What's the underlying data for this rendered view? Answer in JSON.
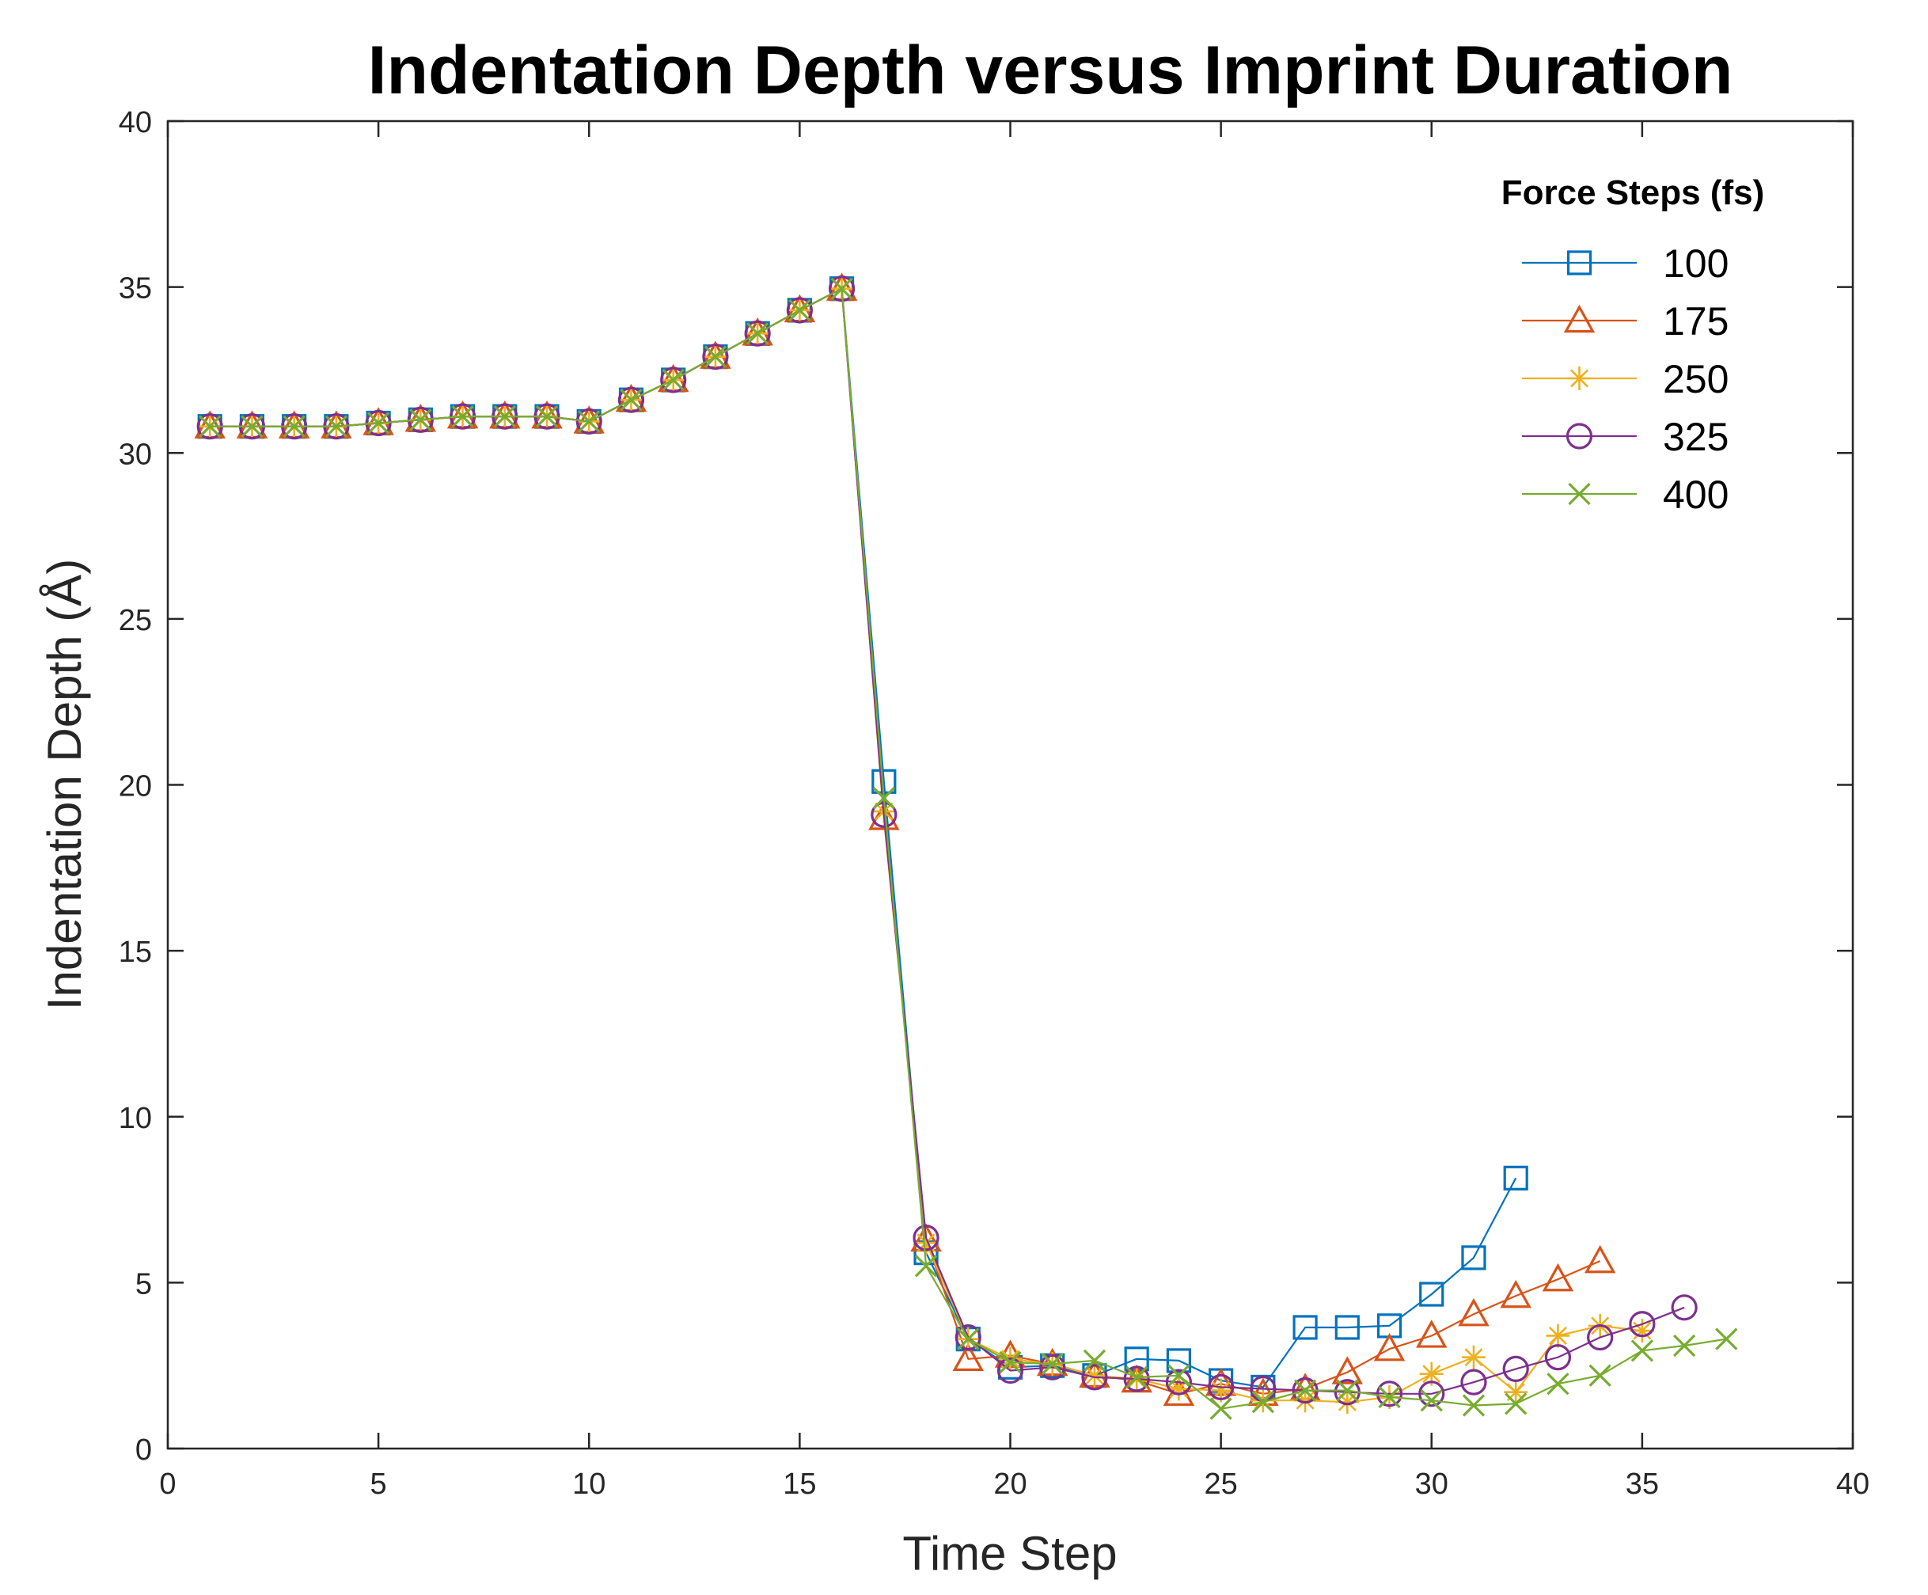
{
  "chart_data": {
    "type": "line",
    "title": "Indentation Depth versus Imprint Duration",
    "xlabel": "Time Step",
    "ylabel": "Indentation Depth (Å)",
    "xlim": [
      0,
      40
    ],
    "ylim": [
      0,
      40
    ],
    "xticks": [
      0,
      5,
      10,
      15,
      20,
      25,
      30,
      35,
      40
    ],
    "yticks": [
      0,
      5,
      10,
      15,
      20,
      25,
      30,
      35,
      40
    ],
    "grid": false,
    "legend_title": "Force Steps (fs)",
    "legend_position": "top-right",
    "series": [
      {
        "name": "100",
        "color": "#0072BD",
        "marker": "square",
        "x": [
          1,
          2,
          3,
          4,
          5,
          6,
          7,
          8,
          9,
          10,
          11,
          12,
          13,
          14,
          15,
          16,
          17,
          18,
          19,
          20,
          21,
          22,
          23,
          24,
          25,
          26,
          27,
          28,
          29,
          30,
          31,
          32
        ],
        "y": [
          30.8,
          30.8,
          30.8,
          30.8,
          30.9,
          31.0,
          31.1,
          31.1,
          31.1,
          30.95,
          31.6,
          32.2,
          32.9,
          33.6,
          34.3,
          34.95,
          20.1,
          5.9,
          3.3,
          2.45,
          2.5,
          2.2,
          2.7,
          2.65,
          2.05,
          1.85,
          3.65,
          3.65,
          3.7,
          4.65,
          5.75,
          8.15
        ]
      },
      {
        "name": "175",
        "color": "#D95319",
        "marker": "triangle",
        "x": [
          1,
          2,
          3,
          4,
          5,
          6,
          7,
          8,
          9,
          10,
          11,
          12,
          13,
          14,
          15,
          16,
          17,
          18,
          19,
          20,
          21,
          22,
          23,
          24,
          25,
          26,
          27,
          28,
          29,
          30,
          31,
          32,
          33,
          34
        ],
        "y": [
          30.8,
          30.8,
          30.8,
          30.8,
          30.9,
          31.0,
          31.1,
          31.1,
          31.1,
          30.95,
          31.6,
          32.2,
          32.9,
          33.6,
          34.3,
          34.95,
          19.0,
          6.3,
          2.7,
          2.8,
          2.55,
          2.2,
          2.05,
          1.65,
          1.95,
          1.65,
          1.8,
          2.3,
          3.0,
          3.4,
          4.05,
          4.6,
          5.1,
          5.65
        ]
      },
      {
        "name": "250",
        "color": "#EDB120",
        "marker": "asterisk",
        "x": [
          1,
          2,
          3,
          4,
          5,
          6,
          7,
          8,
          9,
          10,
          11,
          12,
          13,
          14,
          15,
          16,
          17,
          18,
          19,
          20,
          21,
          22,
          23,
          24,
          25,
          26,
          27,
          28,
          29,
          30,
          31,
          32,
          33,
          34,
          35
        ],
        "y": [
          30.8,
          30.8,
          30.8,
          30.8,
          30.9,
          31.0,
          31.1,
          31.1,
          31.1,
          30.95,
          31.6,
          32.2,
          32.9,
          33.6,
          34.3,
          34.95,
          19.2,
          6.2,
          3.3,
          2.7,
          2.55,
          2.2,
          2.1,
          1.8,
          1.75,
          1.45,
          1.45,
          1.4,
          1.55,
          2.25,
          2.75,
          1.7,
          3.4,
          3.7,
          3.55
        ]
      },
      {
        "name": "325",
        "color": "#7E2F8E",
        "marker": "circle",
        "x": [
          1,
          2,
          3,
          4,
          5,
          6,
          7,
          8,
          9,
          10,
          11,
          12,
          13,
          14,
          15,
          16,
          17,
          18,
          19,
          20,
          21,
          22,
          23,
          24,
          25,
          26,
          27,
          28,
          29,
          30,
          31,
          32,
          33,
          34,
          35,
          36
        ],
        "y": [
          30.8,
          30.8,
          30.8,
          30.8,
          30.9,
          31.0,
          31.1,
          31.1,
          31.1,
          30.95,
          31.6,
          32.2,
          32.9,
          33.6,
          34.3,
          34.95,
          19.1,
          6.35,
          3.35,
          2.35,
          2.45,
          2.15,
          2.1,
          2.0,
          1.85,
          1.8,
          1.75,
          1.7,
          1.65,
          1.65,
          2.0,
          2.4,
          2.75,
          3.35,
          3.75,
          4.25
        ]
      },
      {
        "name": "400",
        "color": "#77AC30",
        "marker": "x",
        "x": [
          1,
          2,
          3,
          4,
          5,
          6,
          7,
          8,
          9,
          10,
          11,
          12,
          13,
          14,
          15,
          16,
          17,
          18,
          19,
          20,
          21,
          22,
          23,
          24,
          25,
          26,
          27,
          28,
          29,
          30,
          31,
          32,
          33,
          34,
          35,
          36,
          37
        ],
        "y": [
          30.8,
          30.8,
          30.8,
          30.8,
          30.9,
          31.0,
          31.1,
          31.1,
          31.1,
          30.95,
          31.6,
          32.2,
          32.9,
          33.6,
          34.3,
          34.95,
          19.6,
          5.5,
          3.3,
          2.6,
          2.55,
          2.65,
          2.15,
          2.2,
          1.2,
          1.4,
          1.75,
          1.75,
          1.55,
          1.45,
          1.3,
          1.35,
          1.95,
          2.2,
          2.95,
          3.1,
          3.3
        ]
      }
    ]
  }
}
